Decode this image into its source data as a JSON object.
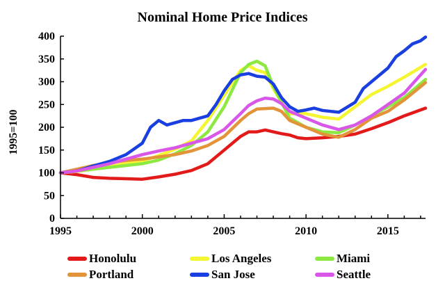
{
  "chart_data": {
    "type": "line",
    "title": "Nominal Home Price Indices",
    "ylabel": "1995=100",
    "xlabel": "",
    "xlim": [
      1995,
      2017.3
    ],
    "ylim": [
      0,
      400
    ],
    "xticks": [
      1995,
      2000,
      2005,
      2010,
      2015
    ],
    "yticks": [
      0,
      50,
      100,
      150,
      200,
      250,
      300,
      350,
      400
    ],
    "grid": false,
    "legend": "bottom",
    "series": [
      {
        "name": "Honolulu",
        "color": "#e21a1a",
        "points": [
          [
            1995,
            100
          ],
          [
            1996,
            96
          ],
          [
            1997,
            90
          ],
          [
            1998,
            88
          ],
          [
            1999,
            87
          ],
          [
            2000,
            86
          ],
          [
            2001,
            91
          ],
          [
            2002,
            97
          ],
          [
            2003,
            105
          ],
          [
            2004,
            120
          ],
          [
            2005,
            150
          ],
          [
            2006,
            180
          ],
          [
            2006.5,
            190
          ],
          [
            2007,
            190
          ],
          [
            2007.5,
            194
          ],
          [
            2008,
            190
          ],
          [
            2008.5,
            186
          ],
          [
            2009,
            183
          ],
          [
            2009.5,
            177
          ],
          [
            2010,
            175
          ],
          [
            2011,
            177
          ],
          [
            2012,
            180
          ],
          [
            2013,
            185
          ],
          [
            2014,
            197
          ],
          [
            2015,
            210
          ],
          [
            2016,
            225
          ],
          [
            2017.3,
            242
          ]
        ]
      },
      {
        "name": "Los Angeles",
        "color": "#f5f532",
        "points": [
          [
            1995,
            100
          ],
          [
            1996,
            103
          ],
          [
            1997,
            108
          ],
          [
            1998,
            114
          ],
          [
            1999,
            120
          ],
          [
            2000,
            126
          ],
          [
            2001,
            138
          ],
          [
            2002,
            152
          ],
          [
            2003,
            170
          ],
          [
            2004,
            215
          ],
          [
            2005,
            270
          ],
          [
            2006,
            325
          ],
          [
            2006.5,
            335
          ],
          [
            2007,
            325
          ],
          [
            2007.5,
            320
          ],
          [
            2008,
            285
          ],
          [
            2008.5,
            255
          ],
          [
            2009,
            230
          ],
          [
            2010,
            230
          ],
          [
            2011,
            222
          ],
          [
            2012,
            218
          ],
          [
            2013,
            245
          ],
          [
            2014,
            272
          ],
          [
            2015,
            290
          ],
          [
            2016,
            310
          ],
          [
            2017.3,
            338
          ]
        ]
      },
      {
        "name": "Miami",
        "color": "#8ee842",
        "points": [
          [
            1995,
            100
          ],
          [
            1996,
            104
          ],
          [
            1997,
            108
          ],
          [
            1998,
            112
          ],
          [
            1999,
            116
          ],
          [
            2000,
            120
          ],
          [
            2001,
            128
          ],
          [
            2002,
            142
          ],
          [
            2003,
            160
          ],
          [
            2004,
            190
          ],
          [
            2005,
            245
          ],
          [
            2006,
            320
          ],
          [
            2006.5,
            338
          ],
          [
            2007,
            345
          ],
          [
            2007.5,
            335
          ],
          [
            2008,
            290
          ],
          [
            2008.5,
            255
          ],
          [
            2009,
            220
          ],
          [
            2010,
            200
          ],
          [
            2011,
            190
          ],
          [
            2012,
            188
          ],
          [
            2013,
            205
          ],
          [
            2014,
            225
          ],
          [
            2015,
            245
          ],
          [
            2016,
            265
          ],
          [
            2017.3,
            305
          ]
        ]
      },
      {
        "name": "Portland",
        "color": "#e3943a",
        "points": [
          [
            1995,
            100
          ],
          [
            1996,
            108
          ],
          [
            1997,
            116
          ],
          [
            1998,
            122
          ],
          [
            1999,
            127
          ],
          [
            2000,
            130
          ],
          [
            2001,
            135
          ],
          [
            2002,
            140
          ],
          [
            2003,
            148
          ],
          [
            2004,
            160
          ],
          [
            2005,
            180
          ],
          [
            2006,
            215
          ],
          [
            2006.5,
            230
          ],
          [
            2007,
            240
          ],
          [
            2008,
            242
          ],
          [
            2008.5,
            235
          ],
          [
            2009,
            215
          ],
          [
            2010,
            200
          ],
          [
            2011,
            185
          ],
          [
            2012,
            178
          ],
          [
            2013,
            195
          ],
          [
            2014,
            220
          ],
          [
            2015,
            235
          ],
          [
            2016,
            260
          ],
          [
            2017.3,
            298
          ]
        ]
      },
      {
        "name": "San Jose",
        "color": "#1a3fe0",
        "points": [
          [
            1995,
            100
          ],
          [
            1996,
            104
          ],
          [
            1997,
            115
          ],
          [
            1998,
            125
          ],
          [
            1999,
            140
          ],
          [
            2000,
            165
          ],
          [
            2000.5,
            200
          ],
          [
            2001,
            215
          ],
          [
            2001.5,
            205
          ],
          [
            2002,
            210
          ],
          [
            2002.5,
            215
          ],
          [
            2003,
            215
          ],
          [
            2004,
            225
          ],
          [
            2004.5,
            250
          ],
          [
            2005,
            280
          ],
          [
            2005.5,
            305
          ],
          [
            2006,
            315
          ],
          [
            2006.5,
            318
          ],
          [
            2007,
            312
          ],
          [
            2007.5,
            310
          ],
          [
            2008,
            295
          ],
          [
            2008.5,
            265
          ],
          [
            2009,
            245
          ],
          [
            2009.5,
            235
          ],
          [
            2010,
            238
          ],
          [
            2010.5,
            242
          ],
          [
            2011,
            237
          ],
          [
            2012,
            233
          ],
          [
            2013,
            255
          ],
          [
            2013.5,
            285
          ],
          [
            2014,
            300
          ],
          [
            2015,
            330
          ],
          [
            2015.5,
            355
          ],
          [
            2016,
            368
          ],
          [
            2016.5,
            383
          ],
          [
            2017,
            390
          ],
          [
            2017.3,
            398
          ]
        ]
      },
      {
        "name": "Seattle",
        "color": "#d957e8",
        "points": [
          [
            1995,
            100
          ],
          [
            1996,
            104
          ],
          [
            1997,
            112
          ],
          [
            1998,
            120
          ],
          [
            1999,
            130
          ],
          [
            2000,
            140
          ],
          [
            2001,
            148
          ],
          [
            2002,
            155
          ],
          [
            2003,
            165
          ],
          [
            2004,
            175
          ],
          [
            2005,
            195
          ],
          [
            2006,
            230
          ],
          [
            2006.5,
            248
          ],
          [
            2007,
            258
          ],
          [
            2007.5,
            264
          ],
          [
            2008,
            262
          ],
          [
            2008.5,
            252
          ],
          [
            2009,
            235
          ],
          [
            2010,
            220
          ],
          [
            2011,
            205
          ],
          [
            2012,
            195
          ],
          [
            2013,
            205
          ],
          [
            2014,
            225
          ],
          [
            2015,
            250
          ],
          [
            2016,
            275
          ],
          [
            2017.3,
            327
          ]
        ]
      }
    ]
  }
}
